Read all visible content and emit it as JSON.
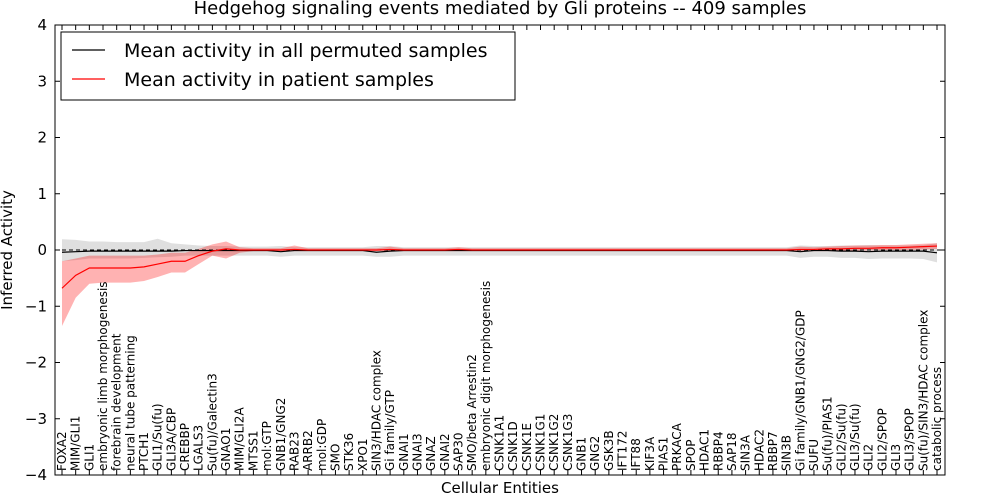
{
  "chart_data": {
    "type": "line",
    "title": "Hedgehog signaling events mediated by Gli proteins -- 409 samples",
    "xlabel": "Cellular Entities",
    "ylabel": "Inferred Activity",
    "ylim": [
      -4,
      4
    ],
    "yticks": [
      "4",
      "3",
      "2",
      "1",
      "0",
      "−1",
      "−2",
      "−3",
      "−4"
    ],
    "legend_position": "upper-left",
    "categories": [
      "FOXA2",
      "MIM/GLI1",
      "GLI1",
      "embryonic limb morphogenesis",
      "forebrain development",
      "neural tube patterning",
      "PTCH1",
      "GLI1/Su(fu)",
      "GLI3A/CBP",
      "CREBBP",
      "LGALS3",
      "Su(fu)/Galectin3",
      "GNAO1",
      "MIM/GLI2A",
      "MTSS1",
      "mol:GTP",
      "GNB1/GNG2",
      "RAB23",
      "ARRB2",
      "mol:GDP",
      "SMO",
      "STK36",
      "XPO1",
      "SIN3/HDAC complex",
      "Gi family/GTP",
      "GNAI1",
      "GNAI3",
      "GNAZ",
      "GNAI2",
      "SAP30",
      "SMO/beta Arrestin2",
      "embryonic digit morphogenesis",
      "CSNK1A1",
      "CSNK1D",
      "CSNK1E",
      "CSNK1G1",
      "CSNK1G2",
      "CSNK1G3",
      "GNB1",
      "GNG2",
      "GSK3B",
      "IFT172",
      "IFT88",
      "KIF3A",
      "PIAS1",
      "PRKACA",
      "SPOP",
      "HDAC1",
      "RBBP4",
      "SAP18",
      "SIN3A",
      "HDAC2",
      "RBBP7",
      "SIN3B",
      "Gi family/GNB1/GNG2/GDP",
      "SUFU",
      "Su(fu)/PIAS1",
      "GLI2/Su(fu)",
      "GLI3/Su(fu)",
      "GLI2",
      "GLI2/SPOP",
      "GLI3",
      "GLI3/SPOP",
      "Su(fu)/SIN3/HDAC complex",
      "catabolic process"
    ],
    "series": [
      {
        "name": "Mean activity in all permuted samples",
        "color": "#000000",
        "values": [
          -0.04,
          -0.03,
          -0.02,
          -0.02,
          -0.02,
          -0.02,
          -0.02,
          -0.02,
          -0.02,
          -0.01,
          -0.01,
          -0.01,
          -0.01,
          -0.01,
          -0.01,
          -0.01,
          -0.03,
          -0.01,
          -0.01,
          -0.01,
          -0.01,
          -0.01,
          -0.01,
          -0.04,
          -0.02,
          -0.01,
          -0.01,
          -0.01,
          -0.01,
          -0.01,
          -0.01,
          -0.01,
          -0.01,
          -0.01,
          -0.01,
          -0.01,
          -0.01,
          -0.01,
          -0.01,
          -0.01,
          -0.01,
          -0.01,
          -0.01,
          -0.01,
          -0.01,
          -0.01,
          -0.01,
          -0.01,
          -0.01,
          -0.01,
          -0.01,
          -0.01,
          -0.01,
          -0.01,
          -0.03,
          -0.01,
          -0.01,
          -0.02,
          -0.02,
          -0.03,
          -0.02,
          -0.02,
          -0.02,
          -0.02,
          -0.05
        ],
        "band_low": [
          -0.2,
          -0.18,
          -0.15,
          -0.15,
          -0.15,
          -0.15,
          -0.14,
          -0.13,
          -0.12,
          -0.1,
          -0.1,
          -0.1,
          -0.1,
          -0.1,
          -0.1,
          -0.1,
          -0.12,
          -0.1,
          -0.1,
          -0.1,
          -0.1,
          -0.1,
          -0.1,
          -0.12,
          -0.12,
          -0.1,
          -0.1,
          -0.1,
          -0.1,
          -0.1,
          -0.1,
          -0.1,
          -0.1,
          -0.1,
          -0.1,
          -0.1,
          -0.1,
          -0.1,
          -0.1,
          -0.1,
          -0.1,
          -0.1,
          -0.1,
          -0.1,
          -0.1,
          -0.1,
          -0.1,
          -0.1,
          -0.1,
          -0.1,
          -0.1,
          -0.1,
          -0.1,
          -0.1,
          -0.14,
          -0.12,
          -0.12,
          -0.14,
          -0.14,
          -0.16,
          -0.15,
          -0.15,
          -0.15,
          -0.16,
          -0.22
        ],
        "band_high": [
          0.19,
          0.18,
          0.15,
          0.15,
          0.14,
          0.14,
          0.14,
          0.2,
          0.12,
          0.1,
          0.08,
          0.07,
          0.07,
          0.06,
          0.06,
          0.06,
          0.07,
          0.05,
          0.05,
          0.05,
          0.05,
          0.05,
          0.05,
          0.07,
          0.07,
          0.05,
          0.05,
          0.05,
          0.05,
          0.05,
          0.05,
          0.05,
          0.05,
          0.05,
          0.05,
          0.05,
          0.05,
          0.05,
          0.05,
          0.05,
          0.05,
          0.05,
          0.05,
          0.05,
          0.05,
          0.05,
          0.05,
          0.05,
          0.05,
          0.05,
          0.05,
          0.05,
          0.05,
          0.05,
          0.08,
          0.07,
          0.07,
          0.08,
          0.08,
          0.09,
          0.08,
          0.08,
          0.08,
          0.09,
          0.12
        ]
      },
      {
        "name": "Mean activity in patient samples",
        "color": "#ff0000",
        "values": [
          -0.68,
          -0.45,
          -0.32,
          -0.32,
          -0.32,
          -0.32,
          -0.3,
          -0.25,
          -0.2,
          -0.2,
          -0.1,
          -0.02,
          0.02,
          0.0,
          0.0,
          0.0,
          0.0,
          0.01,
          0.0,
          0.0,
          0.0,
          0.0,
          0.0,
          0.0,
          0.01,
          0.0,
          0.0,
          0.0,
          0.0,
          0.01,
          0.0,
          0.0,
          0.0,
          0.0,
          0.0,
          0.0,
          0.0,
          0.0,
          0.0,
          0.0,
          0.0,
          0.0,
          0.0,
          0.0,
          0.0,
          0.0,
          0.0,
          0.0,
          0.0,
          0.0,
          0.0,
          0.0,
          0.0,
          0.0,
          0.01,
          0.01,
          0.02,
          0.02,
          0.03,
          0.03,
          0.04,
          0.04,
          0.05,
          0.06,
          0.07
        ],
        "band_low": [
          -1.35,
          -0.85,
          -0.6,
          -0.58,
          -0.58,
          -0.58,
          -0.55,
          -0.48,
          -0.4,
          -0.4,
          -0.25,
          -0.1,
          -0.15,
          -0.05,
          -0.02,
          -0.02,
          -0.02,
          -0.02,
          -0.02,
          -0.02,
          -0.02,
          -0.02,
          -0.02,
          -0.02,
          -0.02,
          -0.02,
          -0.02,
          -0.02,
          -0.02,
          -0.02,
          -0.02,
          -0.02,
          -0.02,
          -0.02,
          -0.02,
          -0.02,
          -0.02,
          -0.02,
          -0.02,
          -0.02,
          -0.02,
          -0.02,
          -0.02,
          -0.02,
          -0.02,
          -0.02,
          -0.02,
          -0.02,
          -0.02,
          -0.02,
          -0.02,
          -0.02,
          -0.02,
          -0.02,
          -0.02,
          -0.02,
          -0.02,
          -0.02,
          -0.01,
          -0.01,
          0.0,
          0.0,
          0.0,
          0.01,
          0.02
        ],
        "band_high": [
          -0.2,
          -0.15,
          -0.1,
          -0.1,
          -0.1,
          -0.1,
          -0.1,
          -0.08,
          -0.05,
          -0.05,
          0.02,
          0.1,
          0.15,
          0.05,
          0.03,
          0.03,
          0.03,
          0.08,
          0.03,
          0.03,
          0.03,
          0.03,
          0.03,
          0.03,
          0.06,
          0.03,
          0.03,
          0.03,
          0.03,
          0.05,
          0.03,
          0.03,
          0.03,
          0.03,
          0.03,
          0.03,
          0.03,
          0.03,
          0.03,
          0.03,
          0.03,
          0.03,
          0.03,
          0.03,
          0.03,
          0.03,
          0.03,
          0.03,
          0.03,
          0.03,
          0.03,
          0.03,
          0.03,
          0.03,
          0.06,
          0.05,
          0.06,
          0.07,
          0.08,
          0.08,
          0.09,
          0.09,
          0.1,
          0.11,
          0.12
        ]
      }
    ]
  }
}
